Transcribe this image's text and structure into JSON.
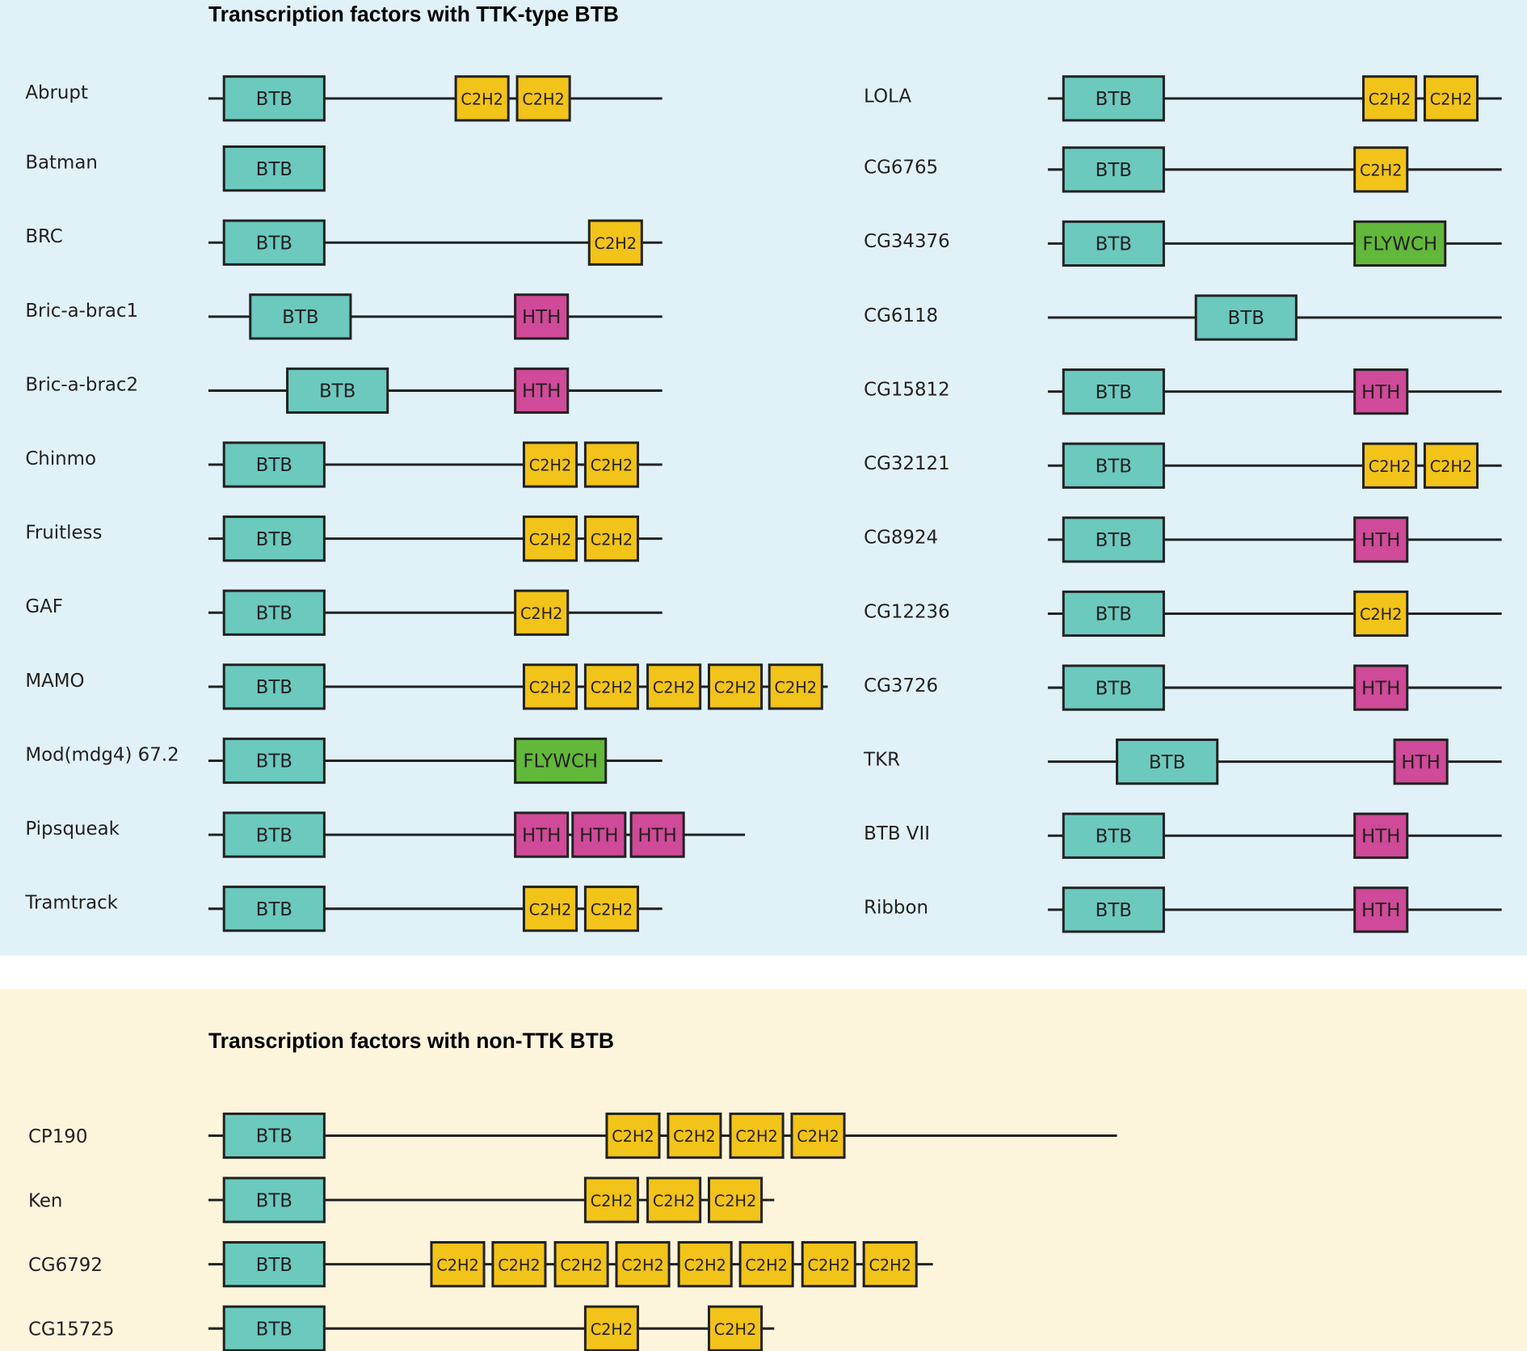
{
  "colors": {
    "ttk_panel_bg": "#e0f2f7",
    "nonttk_panel_bg": "#fdf4dc",
    "BTB": "#6cc9be",
    "C2H2": "#f2c318",
    "HTH": "#cf4a98",
    "FLYWCH": "#62b83a",
    "outline": "#222222"
  },
  "ttk_panel": {
    "title": "Transcription factors with TTK-type BTB",
    "left_column": [
      {
        "name": "Abrupt",
        "domains": [
          "BTB",
          "C2H2",
          "C2H2"
        ]
      },
      {
        "name": "Batman",
        "domains": [
          "BTB"
        ]
      },
      {
        "name": "BRC",
        "domains": [
          "BTB",
          "C2H2"
        ]
      },
      {
        "name": "Bric-a-brac1",
        "domains": [
          "BTB",
          "HTH"
        ]
      },
      {
        "name": "Bric-a-brac2",
        "domains": [
          "BTB",
          "HTH"
        ]
      },
      {
        "name": "Chinmo",
        "domains": [
          "BTB",
          "C2H2",
          "C2H2"
        ]
      },
      {
        "name": "Fruitless",
        "domains": [
          "BTB",
          "C2H2",
          "C2H2"
        ]
      },
      {
        "name": "GAF",
        "domains": [
          "BTB",
          "C2H2"
        ]
      },
      {
        "name": "MAMO",
        "domains": [
          "BTB",
          "C2H2",
          "C2H2",
          "C2H2",
          "C2H2",
          "C2H2"
        ]
      },
      {
        "name": "Mod(mdg4) 67.2",
        "domains": [
          "BTB",
          "FLYWCH"
        ]
      },
      {
        "name": "Pipsqueak",
        "domains": [
          "BTB",
          "HTH",
          "HTH",
          "HTH"
        ]
      },
      {
        "name": "Tramtrack",
        "domains": [
          "BTB",
          "C2H2",
          "C2H2"
        ]
      }
    ],
    "right_column": [
      {
        "name": "LOLA",
        "domains": [
          "BTB",
          "C2H2",
          "C2H2"
        ]
      },
      {
        "name": "CG6765",
        "domains": [
          "BTB",
          "C2H2"
        ]
      },
      {
        "name": "CG34376",
        "domains": [
          "BTB",
          "FLYWCH"
        ]
      },
      {
        "name": "CG6118",
        "domains": [
          "BTB"
        ]
      },
      {
        "name": "CG15812",
        "domains": [
          "BTB",
          "HTH"
        ]
      },
      {
        "name": "CG32121",
        "domains": [
          "BTB",
          "C2H2",
          "C2H2"
        ]
      },
      {
        "name": "CG8924",
        "domains": [
          "BTB",
          "HTH"
        ]
      },
      {
        "name": "CG12236",
        "domains": [
          "BTB",
          "C2H2"
        ]
      },
      {
        "name": "CG3726",
        "domains": [
          "BTB",
          "HTH"
        ]
      },
      {
        "name": "TKR",
        "domains": [
          "BTB",
          "HTH"
        ]
      },
      {
        "name": "BTB VII",
        "domains": [
          "BTB",
          "HTH"
        ]
      },
      {
        "name": "Ribbon",
        "domains": [
          "BTB",
          "HTH"
        ]
      }
    ]
  },
  "nonttk_panel": {
    "title": "Transcription factors with non-TTK BTB",
    "proteins": [
      {
        "name": "CP190",
        "domains": [
          "BTB",
          "C2H2",
          "C2H2",
          "C2H2",
          "C2H2"
        ]
      },
      {
        "name": "Ken",
        "domains": [
          "BTB",
          "C2H2",
          "C2H2",
          "C2H2"
        ]
      },
      {
        "name": "CG6792",
        "domains": [
          "BTB",
          "C2H2",
          "C2H2",
          "C2H2",
          "C2H2",
          "C2H2",
          "C2H2",
          "C2H2",
          "C2H2"
        ]
      },
      {
        "name": "CG15725",
        "domains": [
          "BTB",
          "C2H2",
          "C2H2"
        ]
      }
    ]
  }
}
